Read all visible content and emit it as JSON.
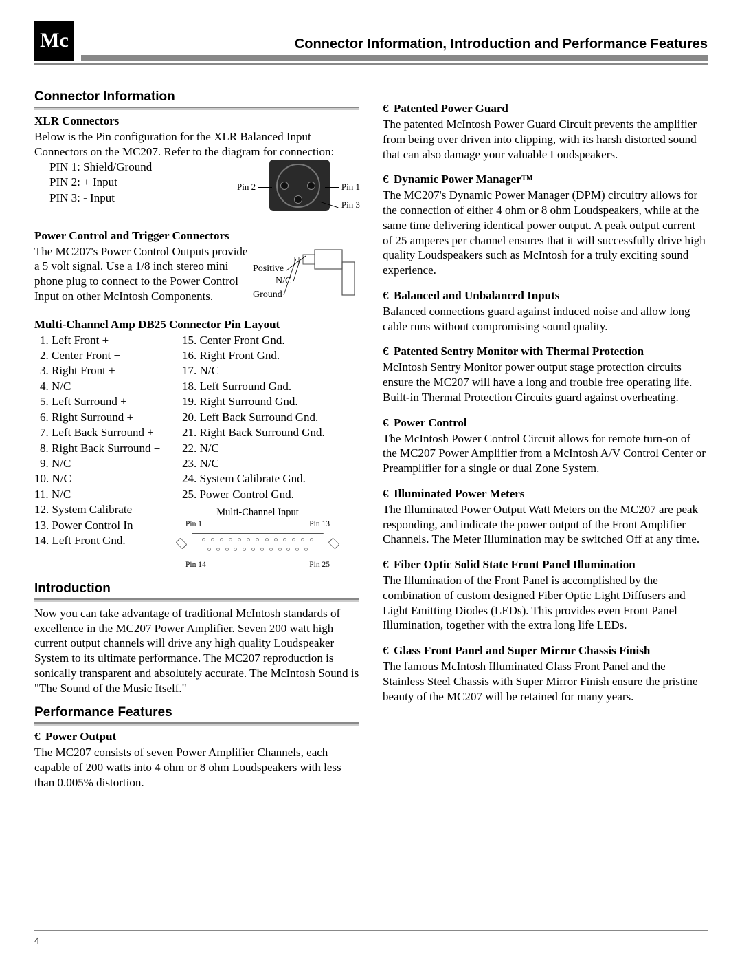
{
  "header": {
    "logo_text": "Mc",
    "page_title": "Connector Information, Introduction and Performance Features"
  },
  "page_number": "4",
  "left": {
    "section1": {
      "heading": "Connector Information",
      "xlr": {
        "heading": "XLR Connectors",
        "intro": "Below is the Pin configuration for the XLR Balanced Input Connectors on the MC207. Refer to the diagram for connection:",
        "pins": [
          "PIN 1: Shield/Ground",
          "PIN 2: + Input",
          "PIN 3: - Input"
        ],
        "diag": {
          "p1": "Pin 1",
          "p2": "Pin 2",
          "p3": "Pin 3"
        }
      },
      "pct": {
        "heading": "Power Control and Trigger Connectors",
        "body": "The MC207's Power Control Outputs provide a 5 volt signal. Use a 1/8 inch stereo mini phone plug to connect to the Power Control Input on other McIntosh Components.",
        "labels": {
          "pos": "Positive",
          "nc": "N/C",
          "gnd": "Ground"
        }
      },
      "db25": {
        "heading": "Multi-Channel Amp DB25 Connector Pin Layout",
        "left_col": [
          "1. Left Front +",
          "2. Center Front +",
          "3. Right Front +",
          "4. N/C",
          "5. Left Surround +",
          "6. Right Surround +",
          "7. Left Back Surround +",
          "8. Right Back Surround +",
          "9. N/C",
          "10. N/C",
          "11. N/C",
          "12. System Calibrate",
          "13. Power Control In",
          "14. Left Front Gnd."
        ],
        "right_col": [
          "15. Center Front Gnd.",
          "16. Right Front Gnd.",
          "17. N/C",
          "18. Left Surround Gnd.",
          "19. Right Surround Gnd.",
          "20. Left Back Surround Gnd.",
          "21. Right Back Surround Gnd.",
          "22. N/C",
          "23. N/C",
          "24. System Calibrate Gnd.",
          "25. Power Control Gnd."
        ],
        "fig_title": "Multi-Channel Input",
        "pin_labels": {
          "p1": "Pin 1",
          "p13": "Pin 13",
          "p14": "Pin 14",
          "p25": "Pin 25"
        }
      }
    },
    "section2": {
      "heading": "Introduction",
      "body": "Now you can take advantage of traditional McIntosh standards of excellence in the MC207 Power Amplifier. Seven 200 watt high current output channels will drive any high quality Loudspeaker System to its ultimate performance. The MC207 reproduction is sonically transparent and absolutely accurate. The McIntosh Sound is \"The Sound of the Music Itself.\""
    },
    "section3": {
      "heading": "Performance Features",
      "feature": {
        "title": "Power Output",
        "body": "The MC207 consists of seven Power Amplifier Channels, each capable of 200 watts into 4 ohm or 8 ohm Loudspeakers with less than 0.005% distortion."
      }
    }
  },
  "right": {
    "features": [
      {
        "title": "Patented Power Guard",
        "body": "The patented McIntosh Power Guard Circuit prevents the amplifier from being over driven into clipping, with its harsh distorted sound that can also damage your valuable Loudspeakers."
      },
      {
        "title": "Dynamic Power Manager™",
        "body": "The MC207's Dynamic Power Manager (DPM) circuitry allows for the connection of either 4 ohm or 8 ohm Loudspeakers, while at the same time delivering identical power output. A peak output current of 25 amperes per channel ensures that it will successfully drive high quality Loudspeakers such as McIntosh for a truly exciting sound experience."
      },
      {
        "title": "Balanced and Unbalanced Inputs",
        "body": "Balanced connections guard against induced noise and allow long cable runs without compromising sound quality."
      },
      {
        "title": "Patented Sentry Monitor with Thermal Protection",
        "body": "McIntosh Sentry Monitor power output stage protection circuits ensure the MC207 will have a long and trouble free operating life. Built-in Thermal Protection Circuits guard against overheating."
      },
      {
        "title": "Power Control",
        "body": "The McIntosh Power Control Circuit allows for remote turn-on of the MC207 Power Amplifier from a McIntosh A/V Control Center or Preamplifier for a single or dual Zone System."
      },
      {
        "title": "Illuminated Power Meters",
        "body": "The Illuminated Power Output Watt Meters on the MC207 are peak responding, and indicate the power output of the Front Amplifier Channels. The Meter Illumination may be switched Off at any time."
      },
      {
        "title": "Fiber Optic Solid State Front Panel Illumination",
        "body": "The Illumination of the Front Panel is accomplished by the combination of custom designed Fiber Optic Light Diffusers and Light Emitting Diodes (LEDs). This provides even Front Panel Illumination, together with the extra long life LEDs."
      },
      {
        "title": "Glass Front Panel and Super Mirror Chassis Finish",
        "body": "The famous McIntosh Illuminated Glass Front Panel and the Stainless Steel Chassis with Super Mirror Finish ensure the pristine beauty of the MC207 will be retained for many years."
      }
    ]
  },
  "bullet_char": "€"
}
